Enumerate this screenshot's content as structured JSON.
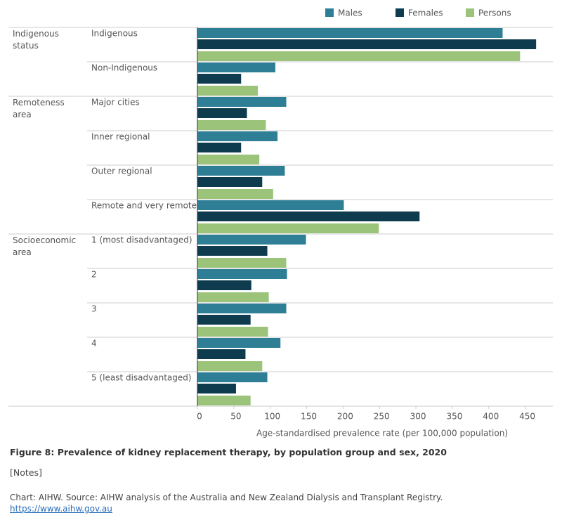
{
  "chart_data": {
    "type": "bar",
    "orientation": "horizontal",
    "groups": [
      {
        "label": "Indigenous status",
        "categories": [
          "Indigenous",
          "Non-Indigenous"
        ]
      },
      {
        "label": "Remoteness area",
        "categories": [
          "Major cities",
          "Inner regional",
          "Outer regional",
          "Remote and very remote"
        ]
      },
      {
        "label": "Socioeconomic area",
        "categories": [
          "1 (most disadvantaged)",
          "2",
          "3",
          "4",
          "5 (least disadvantaged)"
        ]
      }
    ],
    "series": [
      {
        "name": "Males",
        "color": "#2e7f96",
        "values": [
          419,
          107,
          122,
          110,
          120,
          201,
          149,
          123,
          122,
          114,
          96
        ]
      },
      {
        "name": "Females",
        "color": "#0e3b4e",
        "values": [
          465,
          60,
          68,
          60,
          89,
          305,
          96,
          74,
          73,
          66,
          53
        ]
      },
      {
        "name": "Persons",
        "color": "#9bc47a",
        "values": [
          443,
          83,
          94,
          85,
          104,
          249,
          122,
          98,
          97,
          89,
          73
        ]
      }
    ],
    "xlabel": "Age-standardised prevalence rate (per 100,000 population)",
    "xlim": [
      0,
      488
    ],
    "xticks": [
      0,
      50,
      100,
      150,
      200,
      250,
      300,
      350,
      400,
      450
    ],
    "legend": "top"
  },
  "caption": "Figure 8: Prevalence of kidney replacement therapy, by population group and sex, 2020",
  "notes": "[Notes]",
  "source": "Chart: AIHW. Source: AIHW analysis of the Australia and New Zealand Dialysis and Transplant Registry.",
  "link": "https://www.aihw.gov.au"
}
